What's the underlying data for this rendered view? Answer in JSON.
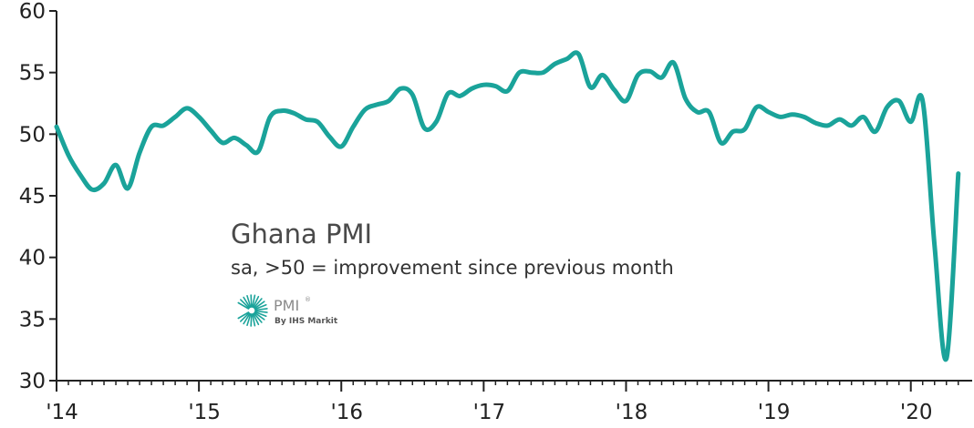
{
  "chart_data": {
    "type": "line",
    "title": "Ghana PMI",
    "subtitle": "sa, >50 = improvement since previous month",
    "xlabel": "",
    "ylabel": "",
    "ylim": [
      30,
      60
    ],
    "yticks": [
      30,
      35,
      40,
      45,
      50,
      55,
      60
    ],
    "xticks": [
      "'14",
      "'15",
      "'16",
      "'17",
      "'18",
      "'19",
      "'20"
    ],
    "grid": false,
    "line_color": "#1aa39a",
    "series": [
      {
        "x": [
          "2014-01",
          "2014-02",
          "2014-03",
          "2014-04",
          "2014-05",
          "2014-06",
          "2014-07",
          "2014-08",
          "2014-09",
          "2014-10",
          "2014-11",
          "2014-12",
          "2015-01",
          "2015-02",
          "2015-03",
          "2015-04",
          "2015-05",
          "2015-06",
          "2015-07",
          "2015-08",
          "2015-09",
          "2015-10",
          "2015-11",
          "2015-12",
          "2016-01",
          "2016-02",
          "2016-03",
          "2016-04",
          "2016-05",
          "2016-06",
          "2016-07",
          "2016-08",
          "2016-09",
          "2016-10",
          "2016-11",
          "2016-12",
          "2017-01",
          "2017-02",
          "2017-03",
          "2017-04",
          "2017-05",
          "2017-06",
          "2017-07",
          "2017-08",
          "2017-09",
          "2017-10",
          "2017-11",
          "2017-12",
          "2018-01",
          "2018-02",
          "2018-03",
          "2018-04",
          "2018-05",
          "2018-06",
          "2018-07",
          "2018-08",
          "2018-09",
          "2018-10",
          "2018-11",
          "2018-12",
          "2019-01",
          "2019-02",
          "2019-03",
          "2019-04",
          "2019-05",
          "2019-06",
          "2019-07",
          "2019-08",
          "2019-09",
          "2019-10",
          "2019-11",
          "2019-12",
          "2020-01",
          "2020-02",
          "2020-03",
          "2020-04",
          "2020-05"
        ],
        "values": [
          50.6,
          48.3,
          46.7,
          45.5,
          46.0,
          47.5,
          45.6,
          48.5,
          50.6,
          50.7,
          51.4,
          52.1,
          51.4,
          50.3,
          49.3,
          49.7,
          49.1,
          48.6,
          51.4,
          51.9,
          51.7,
          51.2,
          51.0,
          49.8,
          49.0,
          50.6,
          52.0,
          52.4,
          52.7,
          53.7,
          53.2,
          50.5,
          51.0,
          53.3,
          53.1,
          53.7,
          54.0,
          53.9,
          53.5,
          55.0,
          55.0,
          55.0,
          55.7,
          56.1,
          56.5,
          53.8,
          54.8,
          53.6,
          52.7,
          54.8,
          55.1,
          54.6,
          55.8,
          52.9,
          51.8,
          51.8,
          49.3,
          50.2,
          50.4,
          52.2,
          51.8,
          51.4,
          51.6,
          51.4,
          50.9,
          50.7,
          51.2,
          50.7,
          51.4,
          50.2,
          52.2,
          52.7,
          51.0,
          52.7,
          41.0,
          31.8,
          46.8
        ]
      }
    ]
  },
  "logo": {
    "text": "PMI",
    "registered": "®",
    "byline": "By IHS Markit"
  }
}
